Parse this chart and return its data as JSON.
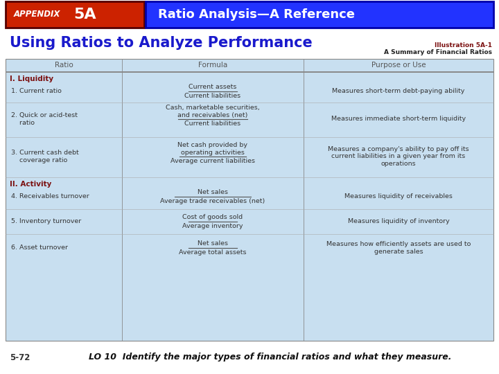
{
  "header_red_text": "APPENDIX",
  "header_red_bold": "5A",
  "header_blue_text": "Ratio Analysis—A Reference",
  "title": "Using Ratios to Analyze Performance",
  "illus_line1": "Illustration 5A-1",
  "illus_line2": "A Summary of Financial Ratios",
  "col_headers": [
    "Ratio",
    "Formula",
    "Purpose or Use"
  ],
  "section1_label": "I. Liquidity",
  "section2_label": "II. Activity",
  "rows": [
    {
      "ratio": "1. Current ratio",
      "formula_num": "Current assets",
      "formula_den": "Current liabilities",
      "purpose": "Measures short-term debt-paying ability"
    },
    {
      "ratio": "2. Quick or acid-test\n    ratio",
      "formula_num": "Cash, marketable securities,\nand receivables (net)",
      "formula_den": "Current liabilities",
      "purpose": "Measures immediate short-term liquidity"
    },
    {
      "ratio": "3. Current cash debt\n    coverage ratio",
      "formula_num": "Net cash provided by\noperating activities",
      "formula_den": "Average current liabilities",
      "purpose": "Measures a company's ability to pay off its\ncurrent liabilities in a given year from its\noperations"
    },
    {
      "ratio": "4. Receivables turnover",
      "formula_num": "Net sales",
      "formula_den": "Average trade receivables (net)",
      "purpose": "Measures liquidity of receivables"
    },
    {
      "ratio": "5. Inventory turnover",
      "formula_num": "Cost of goods sold",
      "formula_den": "Average inventory",
      "purpose": "Measures liquidity of inventory"
    },
    {
      "ratio": "6. Asset turnover",
      "formula_num": "Net sales",
      "formula_den": "Average total assets",
      "purpose": "Measures how efficiently assets are used to\ngenerate sales"
    }
  ],
  "footer_left": "5-72",
  "footer_text": "LO 10  Identify the major types of financial ratios and what they measure.",
  "bg_color": "#ffffff",
  "header_red_bg": "#cc2200",
  "header_blue_bg": "#2233ff",
  "table_bg": "#c8dff0",
  "section_color": "#7b1010",
  "title_color": "#1a1acc",
  "col_header_color": "#555555",
  "text_color": "#333333"
}
